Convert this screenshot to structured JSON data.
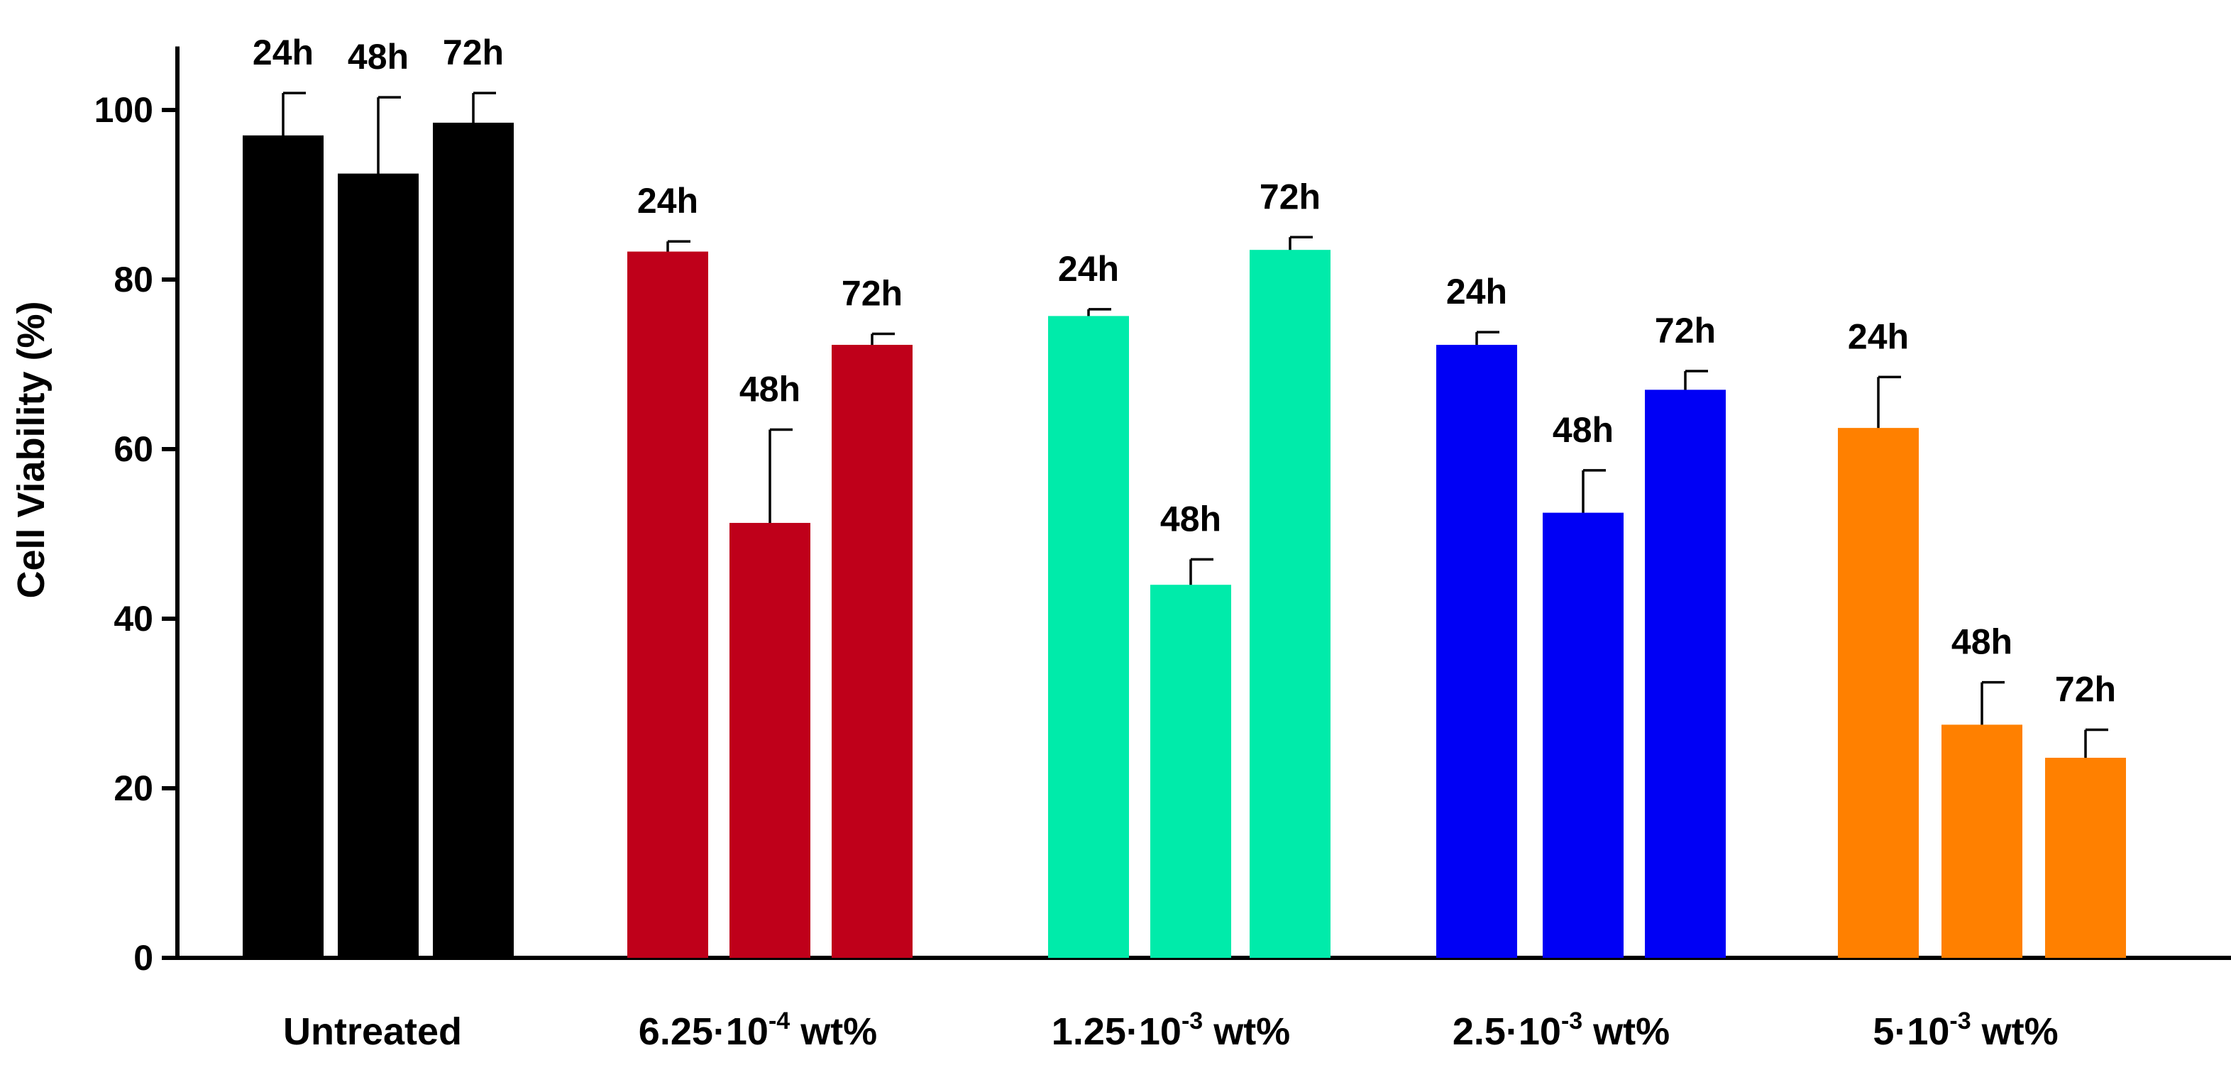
{
  "chart_data": {
    "type": "bar",
    "ylabel": "Cell Viability (%)",
    "ylim": [
      0,
      110
    ],
    "yticks": [
      0,
      20,
      40,
      60,
      80,
      100
    ],
    "grid": false,
    "groups": [
      {
        "label_parts": [
          "Untreated"
        ],
        "color": "#000000",
        "bars": [
          {
            "label": "24h",
            "value": 97,
            "error": 5
          },
          {
            "label": "48h",
            "value": 92.5,
            "error": 9
          },
          {
            "label": "72h",
            "value": 98.5,
            "error": 3.5
          }
        ]
      },
      {
        "label_parts": [
          "6.25·10",
          "-4",
          " wt%"
        ],
        "color": "#BF001A",
        "bars": [
          {
            "label": "24h",
            "value": 83.3,
            "error": 1.2
          },
          {
            "label": "48h",
            "value": 51.3,
            "error": 11
          },
          {
            "label": "72h",
            "value": 72.3,
            "error": 1.3
          }
        ]
      },
      {
        "label_parts": [
          "1.25·10",
          "-3",
          " wt%"
        ],
        "color": "#00EBAA",
        "bars": [
          {
            "label": "24h",
            "value": 75.7,
            "error": 0.8
          },
          {
            "label": "48h",
            "value": 44,
            "error": 3
          },
          {
            "label": "72h",
            "value": 83.5,
            "error": 1.5
          }
        ]
      },
      {
        "label_parts": [
          "2.5·10",
          "-3",
          " wt%"
        ],
        "color": "#0000F5",
        "bars": [
          {
            "label": "24h",
            "value": 72.3,
            "error": 1.5
          },
          {
            "label": "48h",
            "value": 52.5,
            "error": 5
          },
          {
            "label": "72h",
            "value": 67,
            "error": 2.2
          }
        ]
      },
      {
        "label_parts": [
          "5·10",
          "-3",
          " wt%"
        ],
        "color": "#FF8000",
        "bars": [
          {
            "label": "24h",
            "value": 62.5,
            "error": 6
          },
          {
            "label": "48h",
            "value": 27.5,
            "error": 5
          },
          {
            "label": "72h",
            "value": 23.6,
            "error": 3.3
          }
        ]
      }
    ]
  }
}
